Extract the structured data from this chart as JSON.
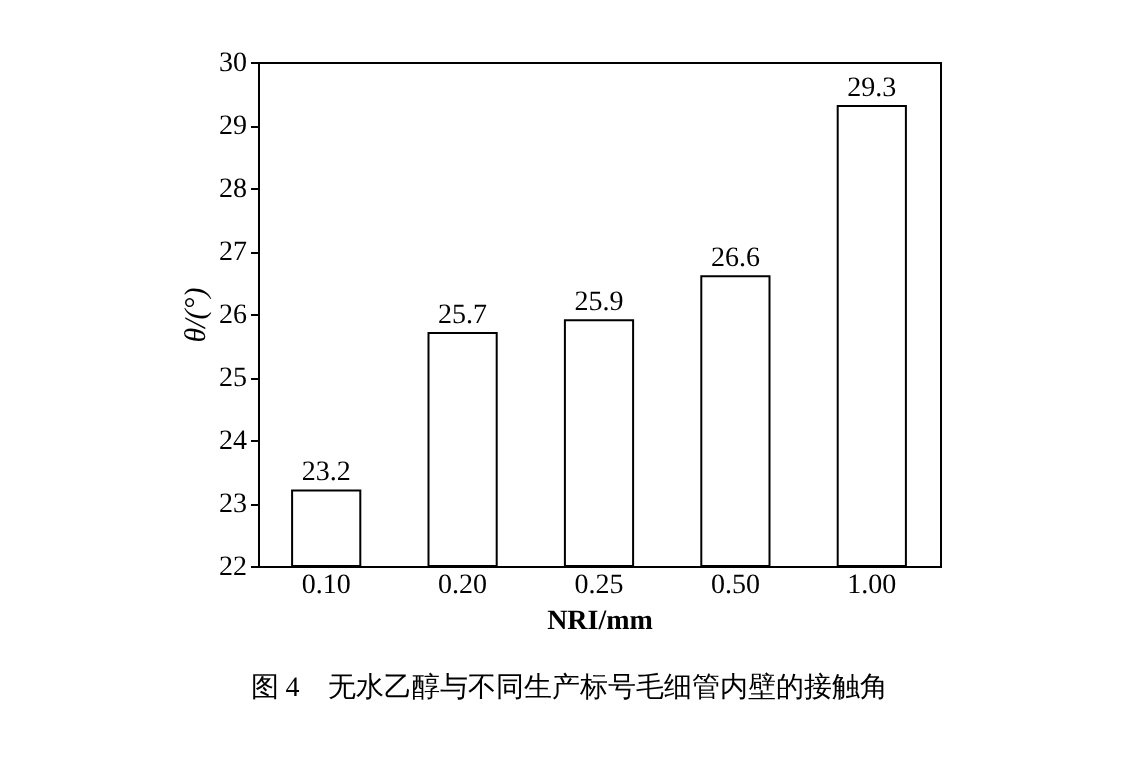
{
  "chart_data": {
    "type": "bar",
    "title": "图 4　无水乙醇与不同生产标号毛细管内壁的接触角",
    "xlabel": "NRI/mm",
    "ylabel": "θ/(°)",
    "categories": [
      "0.10",
      "0.20",
      "0.25",
      "0.50",
      "1.00"
    ],
    "values": [
      23.2,
      25.7,
      25.9,
      26.6,
      29.3
    ],
    "color": "#ffffff",
    "ylim": [
      22,
      30
    ],
    "yticks": [
      22,
      23,
      24,
      25,
      26,
      27,
      28,
      29,
      30
    ],
    "grid": false,
    "data_labels": true
  }
}
